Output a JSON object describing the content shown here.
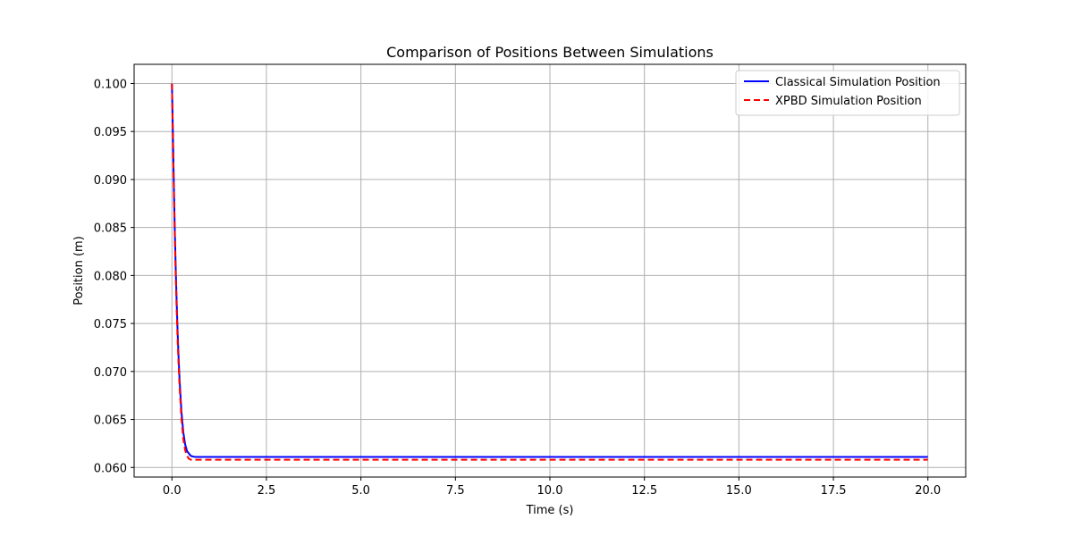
{
  "chart_data": {
    "type": "line",
    "title": "Comparison of Positions Between Simulations",
    "xlabel": "Time (s)",
    "ylabel": "Position (m)",
    "xlim": [
      -1.0,
      21.0
    ],
    "ylim": [
      0.059,
      0.102
    ],
    "xticks": [
      0.0,
      2.5,
      5.0,
      7.5,
      10.0,
      12.5,
      15.0,
      17.5,
      20.0
    ],
    "xtick_labels": [
      "0.0",
      "2.5",
      "5.0",
      "7.5",
      "10.0",
      "12.5",
      "15.0",
      "17.5",
      "20.0"
    ],
    "yticks": [
      0.06,
      0.065,
      0.07,
      0.075,
      0.08,
      0.085,
      0.09,
      0.095,
      0.1
    ],
    "ytick_labels": [
      "0.060",
      "0.065",
      "0.070",
      "0.075",
      "0.080",
      "0.085",
      "0.090",
      "0.095",
      "0.100"
    ],
    "grid": true,
    "legend_position": "top-right",
    "series": [
      {
        "name": "Classical Simulation Position",
        "color": "#0000ff",
        "style": "solid",
        "x": [
          0.0,
          0.025,
          0.05,
          0.075,
          0.1,
          0.125,
          0.15,
          0.175,
          0.2,
          0.25,
          0.3,
          0.35,
          0.4,
          0.5,
          0.6,
          0.8,
          1.0,
          2.5,
          5.0,
          7.5,
          10.0,
          12.5,
          15.0,
          17.5,
          20.0
        ],
        "y": [
          0.1,
          0.095,
          0.0896,
          0.0849,
          0.0808,
          0.0773,
          0.0742,
          0.0716,
          0.0693,
          0.0659,
          0.0637,
          0.0624,
          0.0617,
          0.0612,
          0.0611,
          0.0611,
          0.0611,
          0.0611,
          0.0611,
          0.0611,
          0.0611,
          0.0611,
          0.0611,
          0.0611,
          0.0611
        ]
      },
      {
        "name": "XPBD Simulation Position",
        "color": "#ff0000",
        "style": "dashed",
        "x": [
          0.0,
          0.025,
          0.05,
          0.075,
          0.1,
          0.125,
          0.15,
          0.175,
          0.2,
          0.25,
          0.3,
          0.35,
          0.4,
          0.45,
          0.5,
          0.6,
          0.8,
          1.0,
          2.5,
          5.0,
          7.5,
          10.0,
          12.5,
          15.0,
          17.5,
          20.0
        ],
        "y": [
          0.1,
          0.0948,
          0.0892,
          0.0843,
          0.0801,
          0.0765,
          0.0734,
          0.0708,
          0.0686,
          0.0652,
          0.063,
          0.0618,
          0.0612,
          0.0609,
          0.0608,
          0.0608,
          0.0608,
          0.0608,
          0.0608,
          0.0608,
          0.0608,
          0.0608,
          0.0608,
          0.0608,
          0.0608,
          0.0608
        ]
      }
    ]
  }
}
